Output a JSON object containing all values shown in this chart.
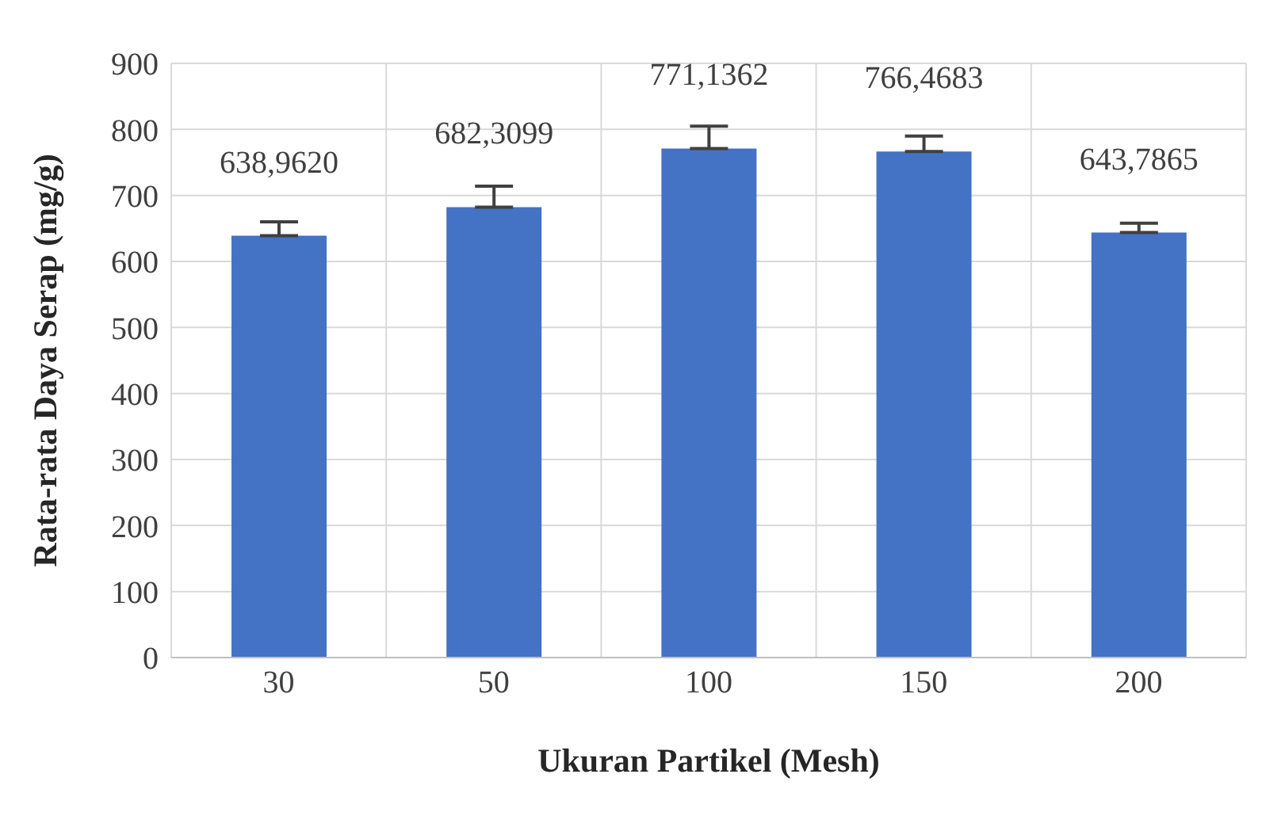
{
  "chart_data": {
    "type": "bar",
    "xlabel": "Ukuran Partikel (Mesh)",
    "ylabel": "Rata-rata Daya Serap (mg/g)",
    "categories": [
      "30",
      "50",
      "100",
      "150",
      "200"
    ],
    "values": [
      638.962,
      682.3099,
      771.1362,
      766.4683,
      643.7865
    ],
    "value_labels": [
      "638,9620",
      "682,3099",
      "771,1362",
      "766,4683",
      "643,7865"
    ],
    "errors": [
      [
        638.962,
        660
      ],
      [
        682.3099,
        714
      ],
      [
        771.1362,
        805
      ],
      [
        766.4683,
        790
      ],
      [
        643.7865,
        658
      ]
    ],
    "color": "#4472c4",
    "ylim": [
      0,
      900
    ],
    "yticks": [
      0,
      100,
      200,
      300,
      400,
      500,
      600,
      700,
      800,
      900
    ],
    "grid": true
  }
}
